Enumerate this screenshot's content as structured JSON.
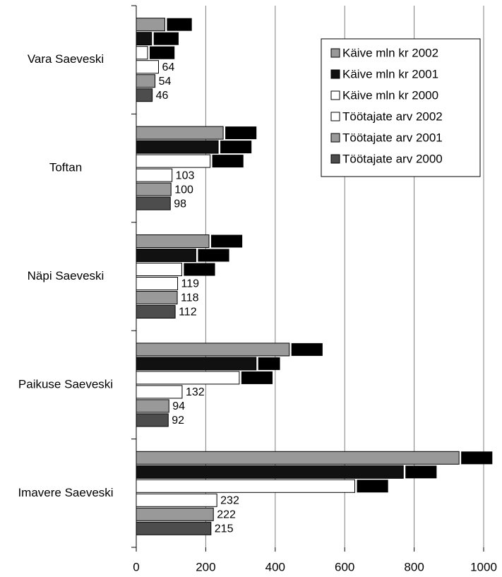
{
  "chart_data": {
    "type": "bar",
    "orientation": "horizontal",
    "categories": [
      "Vara Saeveski",
      "Toftan",
      "Näpi Saeveski",
      "Paikuse Saeveski",
      "Imavere Saeveski"
    ],
    "series": [
      {
        "name": "Käive mln kr 2002",
        "color": "#999999",
        "values": [
          82.2,
          250.2,
          209.3,
          440.5,
          929.2
        ],
        "value_labels": [
          "82,2",
          "250,2",
          "209,3",
          "440,5",
          "929,2"
        ]
      },
      {
        "name": "Käive mln kr 2001",
        "color": "#111111",
        "values": [
          44.1,
          235.9,
          171.6,
          345,
          768.8
        ],
        "value_labels": [
          "44,1",
          "235,9",
          "171,6",
          "345",
          "768,8"
        ]
      },
      {
        "name": "Käive mln kr 2000",
        "color": "#ffffff",
        "values": [
          32.5,
          212.6,
          130.9,
          296.5,
          629.1
        ],
        "value_labels": [
          "32,5",
          "212,6",
          "130,9",
          "296,5",
          "629,1"
        ]
      },
      {
        "name": "Töötajate arv 2002",
        "color": "#ffffff",
        "values": [
          64,
          103,
          119,
          132,
          232
        ]
      },
      {
        "name": "Töötajate arv 2001",
        "color": "#999999",
        "values": [
          54,
          100,
          118,
          94,
          222
        ]
      },
      {
        "name": "Töötajate arv 2000",
        "color": "#4d4d4d",
        "values": [
          46,
          98,
          112,
          92,
          215
        ]
      }
    ],
    "xlim": [
      0,
      1000
    ],
    "xticks": [
      0,
      200,
      400,
      600,
      800,
      1000
    ],
    "grid": true,
    "legend": "upper right"
  }
}
